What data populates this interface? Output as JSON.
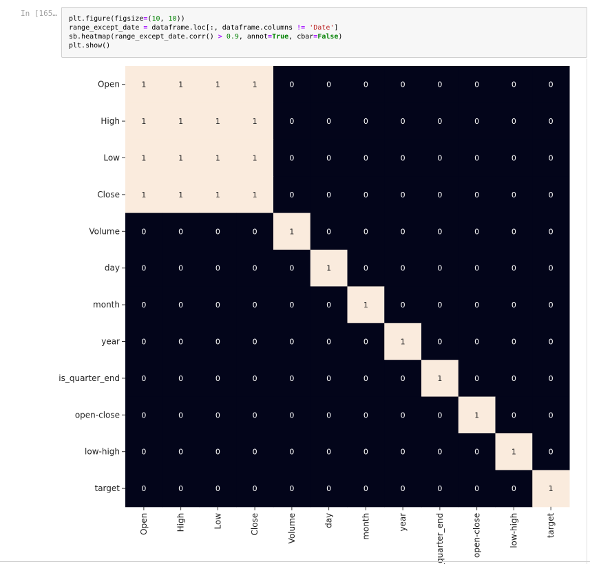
{
  "cell": {
    "prompt": "In [165…",
    "code_lines": [
      [
        {
          "t": "plt.figure(figsize"
        },
        {
          "t": "=",
          "c": "op"
        },
        {
          "t": "("
        },
        {
          "t": "10",
          "c": "num"
        },
        {
          "t": ", "
        },
        {
          "t": "10",
          "c": "num"
        },
        {
          "t": "))"
        }
      ],
      [
        {
          "t": "range_except_date "
        },
        {
          "t": "=",
          "c": "op"
        },
        {
          "t": " dataframe.loc[:, dataframe.columns "
        },
        {
          "t": "!=",
          "c": "op"
        },
        {
          "t": " "
        },
        {
          "t": "'Date'",
          "c": "str"
        },
        {
          "t": "]"
        }
      ],
      [
        {
          "t": "sb.heatmap(range_except_date.corr() "
        },
        {
          "t": ">",
          "c": "op"
        },
        {
          "t": " "
        },
        {
          "t": "0.9",
          "c": "num"
        },
        {
          "t": ", annot"
        },
        {
          "t": "=",
          "c": "op"
        },
        {
          "t": "True",
          "c": "kw"
        },
        {
          "t": ", cbar"
        },
        {
          "t": "=",
          "c": "op"
        },
        {
          "t": "False",
          "c": "kw"
        },
        {
          "t": ")"
        }
      ],
      [
        {
          "t": "plt.show()"
        }
      ]
    ]
  },
  "colors": {
    "true_cell": "#faebdd",
    "false_cell": "#03051a",
    "true_text": "#262626",
    "false_text": "#ffffff"
  },
  "chart_data": {
    "type": "heatmap",
    "title": "",
    "colorbar": false,
    "annotated": true,
    "row_labels": [
      "Open",
      "High",
      "Low",
      "Close",
      "Volume",
      "day",
      "month",
      "year",
      "is_quarter_end",
      "open-close",
      "low-high",
      "target"
    ],
    "col_labels": [
      "Open",
      "High",
      "Low",
      "Close",
      "Volume",
      "day",
      "month",
      "year",
      "is_quarter_end",
      "open-close",
      "low-high",
      "target"
    ],
    "values": [
      [
        1,
        1,
        1,
        1,
        0,
        0,
        0,
        0,
        0,
        0,
        0,
        0
      ],
      [
        1,
        1,
        1,
        1,
        0,
        0,
        0,
        0,
        0,
        0,
        0,
        0
      ],
      [
        1,
        1,
        1,
        1,
        0,
        0,
        0,
        0,
        0,
        0,
        0,
        0
      ],
      [
        1,
        1,
        1,
        1,
        0,
        0,
        0,
        0,
        0,
        0,
        0,
        0
      ],
      [
        0,
        0,
        0,
        0,
        1,
        0,
        0,
        0,
        0,
        0,
        0,
        0
      ],
      [
        0,
        0,
        0,
        0,
        0,
        1,
        0,
        0,
        0,
        0,
        0,
        0
      ],
      [
        0,
        0,
        0,
        0,
        0,
        0,
        1,
        0,
        0,
        0,
        0,
        0
      ],
      [
        0,
        0,
        0,
        0,
        0,
        0,
        0,
        1,
        0,
        0,
        0,
        0
      ],
      [
        0,
        0,
        0,
        0,
        0,
        0,
        0,
        0,
        1,
        0,
        0,
        0
      ],
      [
        0,
        0,
        0,
        0,
        0,
        0,
        0,
        0,
        0,
        1,
        0,
        0
      ],
      [
        0,
        0,
        0,
        0,
        0,
        0,
        0,
        0,
        0,
        0,
        1,
        0
      ],
      [
        0,
        0,
        0,
        0,
        0,
        0,
        0,
        0,
        0,
        0,
        0,
        1
      ]
    ]
  }
}
